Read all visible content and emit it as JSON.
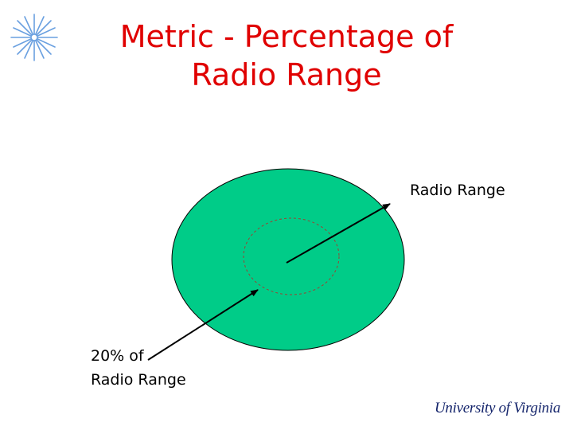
{
  "title": "Metric - Percentage of\nRadio Range",
  "labels": {
    "outer": "Radio Range",
    "inner_line1": "20% of",
    "inner_line2": "Radio Range"
  },
  "logo": {
    "text": "University of Virginia",
    "icon": "star-burst-icon"
  },
  "colors": {
    "title": "#e00000",
    "range_fill": "#00cc88",
    "logo_text": "#14246b",
    "star": "#6aa0e0"
  }
}
